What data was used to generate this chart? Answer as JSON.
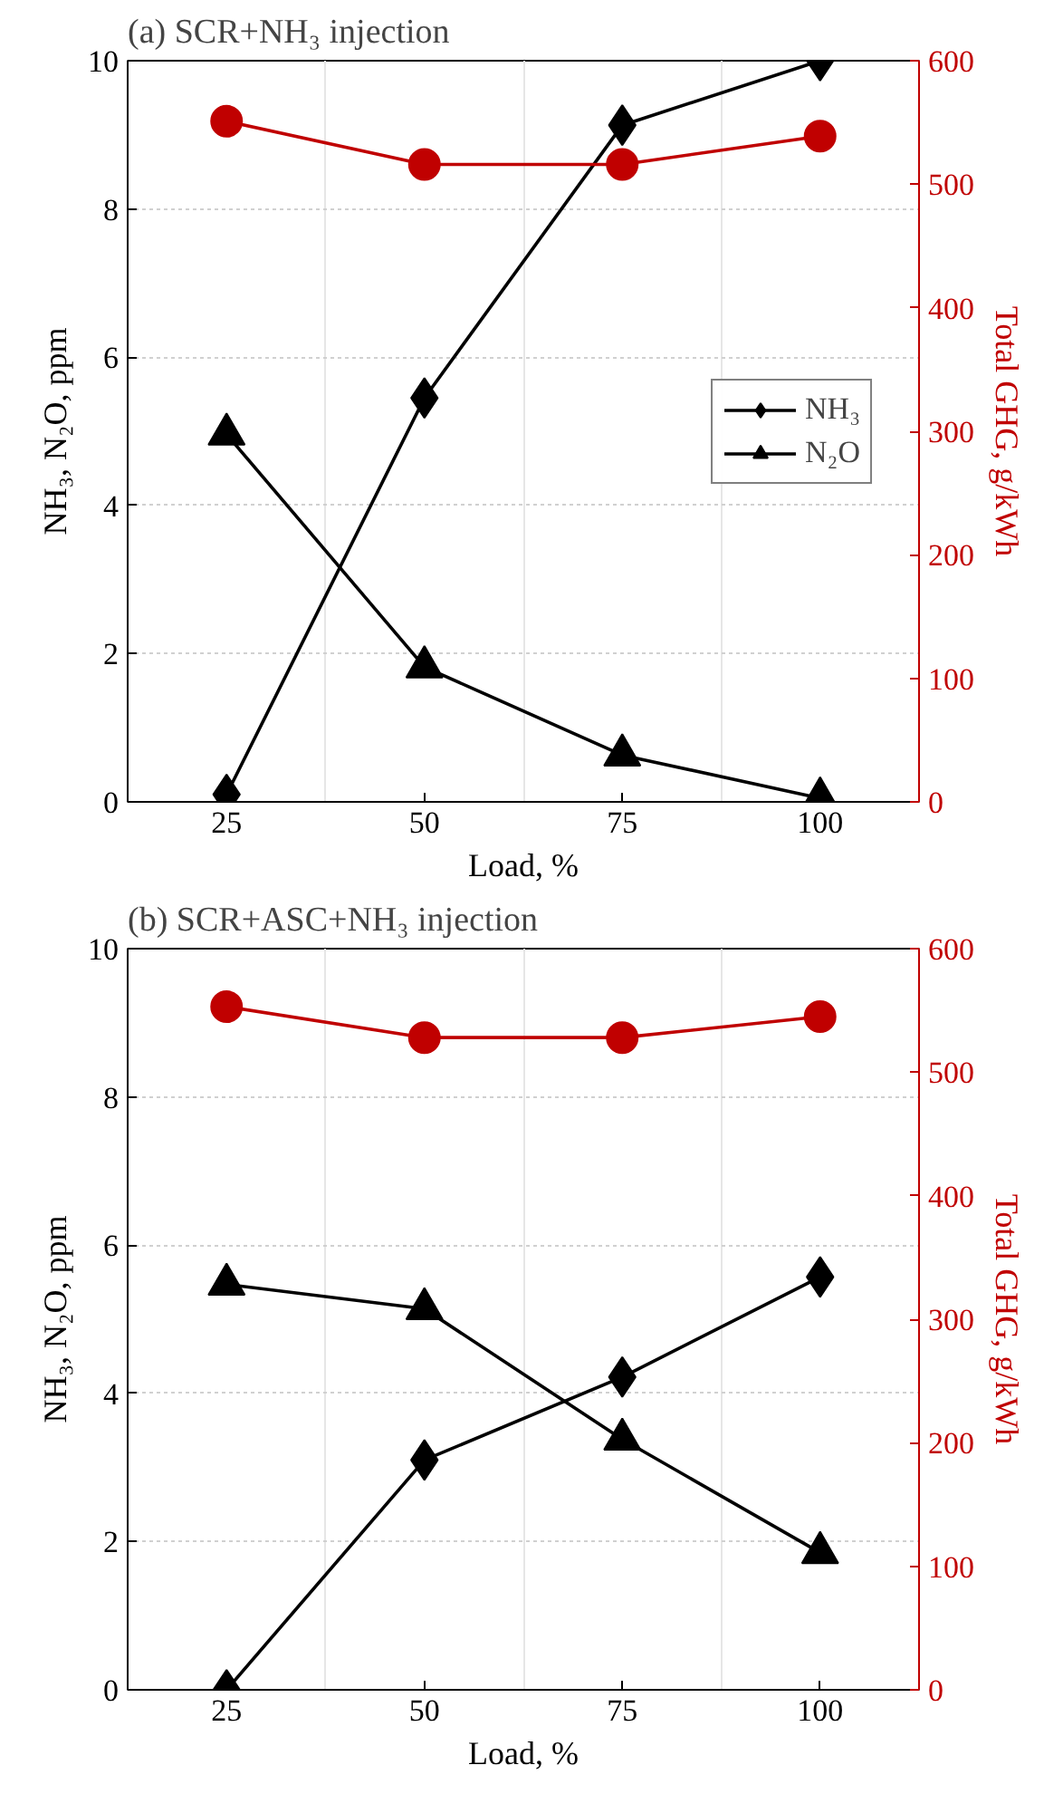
{
  "chart_data": [
    {
      "type": "line",
      "title": "(a) SCR+NH₃ injection",
      "xlabel": "Load, %",
      "ylabel": "NH₃, N₂O, ppm",
      "y2label": "Total GHG, g/kWh",
      "categories": [
        "25",
        "50",
        "75",
        "100"
      ],
      "series": [
        {
          "name": "NH₃",
          "color": "#000000",
          "marker": "diamond",
          "values": [
            0.1,
            5.45,
            9.13,
            10.0
          ]
        },
        {
          "name": "N₂O",
          "color": "#000000",
          "marker": "triangle",
          "values": [
            4.96,
            1.82,
            0.63,
            0.05
          ]
        },
        {
          "color": "#c00000",
          "marker": "circle",
          "axis": "y2",
          "values": [
            551,
            516,
            516,
            539
          ]
        }
      ],
      "ylim": [
        0,
        10
      ],
      "yticks": [
        0,
        2,
        4,
        6,
        8,
        10
      ],
      "y2lim": [
        0,
        600
      ],
      "y2ticks": [
        0,
        100,
        200,
        300,
        400,
        500,
        600
      ],
      "grid": true,
      "legend": "right"
    },
    {
      "type": "line",
      "title": "(b) SCR+ASC+NH₃ injection",
      "xlabel": "Load, %",
      "ylabel": "NH₃, N₂O, ppm",
      "y2label": "Total GHG, g/kWh",
      "categories": [
        "25",
        "50",
        "75",
        "100"
      ],
      "series": [
        {
          "color": "#000000",
          "marker": "diamond",
          "values": [
            0.0,
            3.1,
            4.22,
            5.57
          ]
        },
        {
          "color": "#000000",
          "marker": "triangle",
          "values": [
            5.47,
            5.14,
            3.38,
            1.85
          ]
        },
        {
          "color": "#c00000",
          "marker": "circle",
          "axis": "y2",
          "values": [
            553,
            528,
            528,
            545
          ]
        }
      ],
      "ylim": [
        0,
        10
      ],
      "yticks": [
        0,
        2,
        4,
        6,
        8,
        10
      ],
      "y2lim": [
        0,
        600
      ],
      "y2ticks": [
        0,
        100,
        200,
        300,
        400,
        500,
        600
      ],
      "grid": true,
      "legend": false
    }
  ]
}
